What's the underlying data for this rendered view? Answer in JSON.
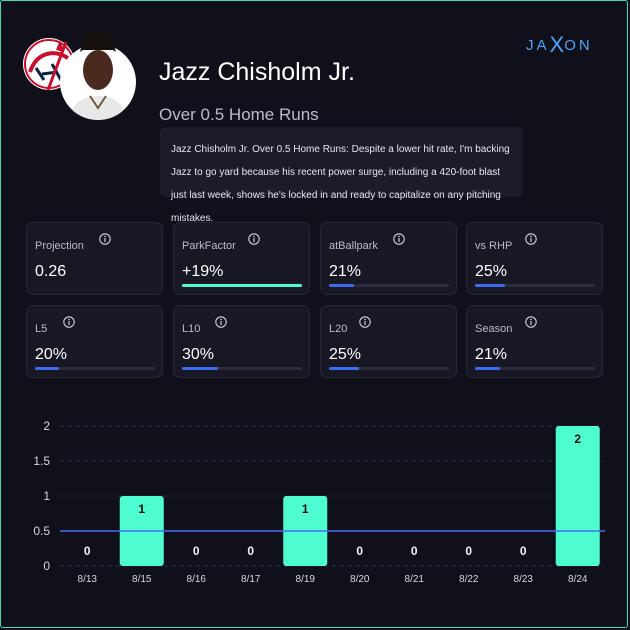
{
  "brand": {
    "pre": "JA",
    "x": "X",
    "post": "ON"
  },
  "team_logo": {
    "icon": "yankees-logo-icon",
    "color": "#c8102e"
  },
  "player": {
    "name": "Jazz Chisholm Jr.",
    "prop": "Over 0.5 Home Runs",
    "blurb": "Jazz Chisholm Jr. Over 0.5 Home Runs: Despite a lower hit rate, I'm backing Jazz to go yard because his recent power surge, including a 420-foot blast just last week, shows he's locked in and ready to capitalize on any pitching mistakes."
  },
  "stats": [
    {
      "label": "Projection",
      "value": "0.26",
      "bar": null
    },
    {
      "label": "ParkFactor",
      "value": "+19%",
      "bar": 1.0,
      "bar_color": "#4dfcd0"
    },
    {
      "label": "atBallpark",
      "value": "21%",
      "bar": 0.21,
      "bar_color": "#3d6cf0"
    },
    {
      "label": "vs RHP",
      "value": "25%",
      "bar": 0.25,
      "bar_color": "#3d6cf0"
    },
    {
      "label": "L5",
      "value": "20%",
      "bar": 0.2,
      "bar_color": "#3d6cf0"
    },
    {
      "label": "L10",
      "value": "30%",
      "bar": 0.3,
      "bar_color": "#3d6cf0"
    },
    {
      "label": "L20",
      "value": "25%",
      "bar": 0.25,
      "bar_color": "#3d6cf0"
    },
    {
      "label": "Season",
      "value": "21%",
      "bar": 0.21,
      "bar_color": "#3d6cf0"
    }
  ],
  "chart_data": {
    "type": "bar",
    "categories": [
      "8/13",
      "8/15",
      "8/16",
      "8/17",
      "8/19",
      "8/20",
      "8/21",
      "8/22",
      "8/23",
      "8/24"
    ],
    "values": [
      0,
      1,
      0,
      0,
      1,
      0,
      0,
      0,
      0,
      2
    ],
    "data_labels": [
      "0",
      "1",
      "0",
      "0",
      "1",
      "0",
      "0",
      "0",
      "0",
      "2"
    ],
    "yticks": [
      "0",
      "0.5",
      "1",
      "1.5",
      "2"
    ],
    "ylim": [
      0,
      2
    ],
    "line": 0.5,
    "bar_color": "#4dfcd0",
    "line_color": "#4a6cf0",
    "grid": true
  }
}
